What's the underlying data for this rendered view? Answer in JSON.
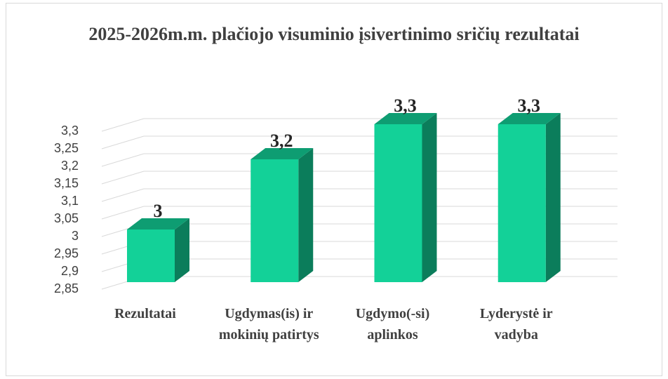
{
  "chart_data": {
    "type": "bar3d",
    "title": "2025-2026m.m. plačiojo visuminio įsivertinimo sričių rezultatai",
    "categories": [
      "Rezultatai",
      "Ugdymas(is) ir mokinių patirtys",
      "Ugdymo(-si) aplinkos",
      "Lyderystė ir vadyba"
    ],
    "values": [
      3,
      3.2,
      3.3,
      3.3
    ],
    "value_labels": [
      "3",
      "3,2",
      "3,3",
      "3,3"
    ],
    "color": "#13d198",
    "ylim": [
      2.85,
      3.3
    ],
    "yticks": [
      {
        "value": 2.85,
        "label": "2,85"
      },
      {
        "value": 2.9,
        "label": "2,9"
      },
      {
        "value": 2.95,
        "label": "2,95"
      },
      3,
      {
        "value": 3.05,
        "label": "3,05"
      },
      {
        "value": 3.1,
        "label": "3,1"
      },
      {
        "value": 3.15,
        "label": "3,15"
      },
      {
        "value": 3.2,
        "label": "3,2"
      },
      {
        "value": 3.25,
        "label": "3,25"
      },
      {
        "value": 3.3,
        "label": "3,3"
      }
    ],
    "grid": true
  }
}
